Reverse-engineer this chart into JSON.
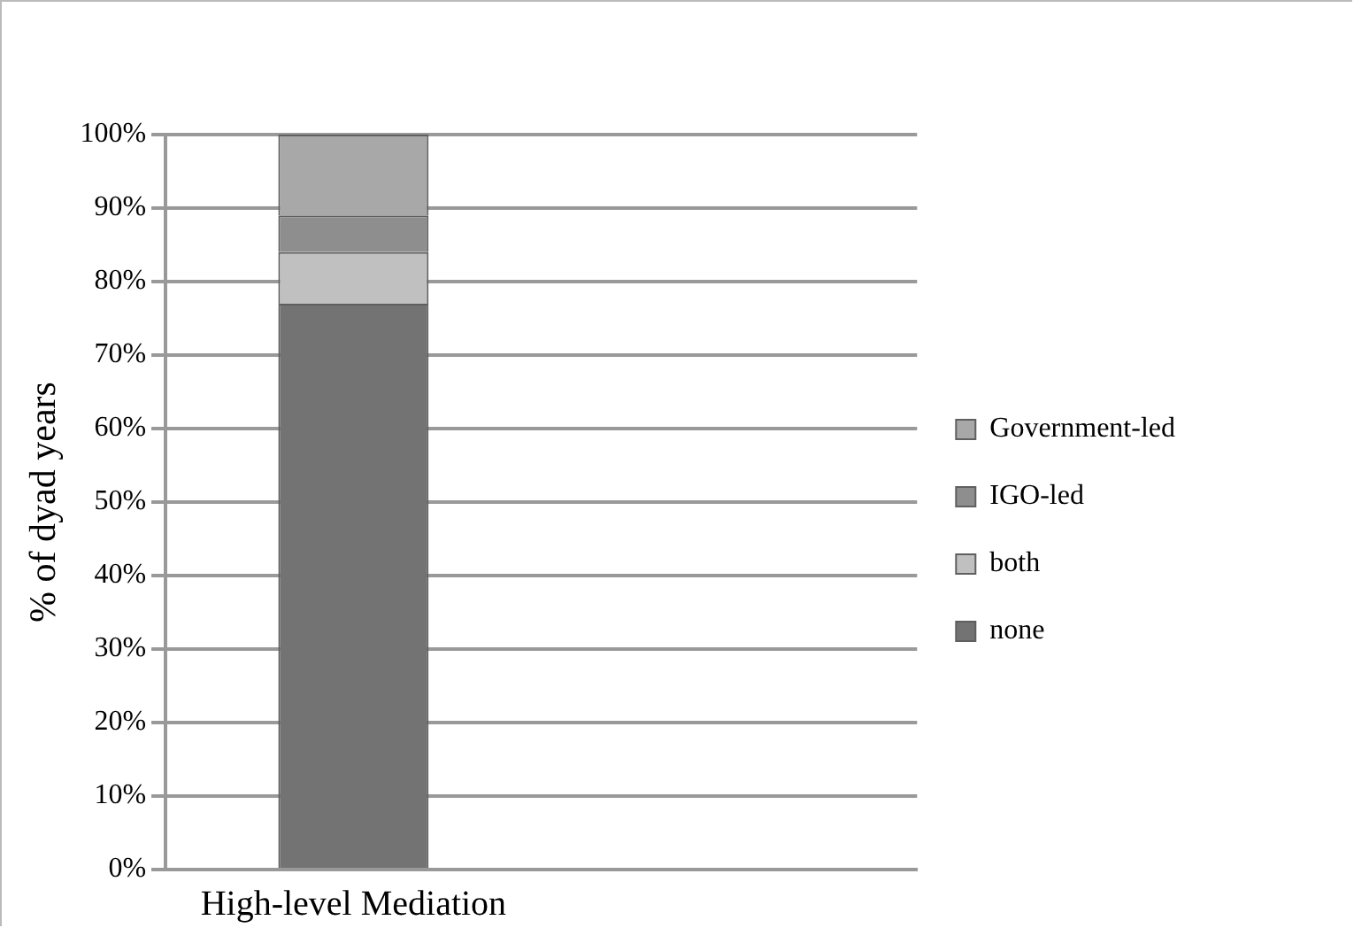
{
  "chart_data": {
    "type": "bar",
    "stacked": true,
    "ylabel": "% of dyad years",
    "categories": [
      "High-level Mediation",
      null
    ],
    "series": [
      {
        "name": "none",
        "color": "#737373",
        "values": [
          77,
          null
        ]
      },
      {
        "name": "both",
        "color": "#c0c0c0",
        "values": [
          7,
          null
        ]
      },
      {
        "name": "IGO-led",
        "color": "#8e8e8e",
        "values": [
          5,
          null
        ]
      },
      {
        "name": "Government-led",
        "color": "#a8a8a8",
        "values": [
          11,
          null
        ]
      }
    ],
    "ylim": [
      0,
      100
    ],
    "yticks": [
      {
        "value": 0,
        "label": "0%"
      },
      {
        "value": 10,
        "label": "10%"
      },
      {
        "value": 20,
        "label": "20%"
      },
      {
        "value": 30,
        "label": "30%"
      },
      {
        "value": 40,
        "label": "40%"
      },
      {
        "value": 50,
        "label": "50%"
      },
      {
        "value": 60,
        "label": "60%"
      },
      {
        "value": 70,
        "label": "70%"
      },
      {
        "value": 80,
        "label": "80%"
      },
      {
        "value": 90,
        "label": "90%"
      },
      {
        "value": 100,
        "label": "100%"
      }
    ],
    "grid": "y",
    "legend": "right"
  }
}
